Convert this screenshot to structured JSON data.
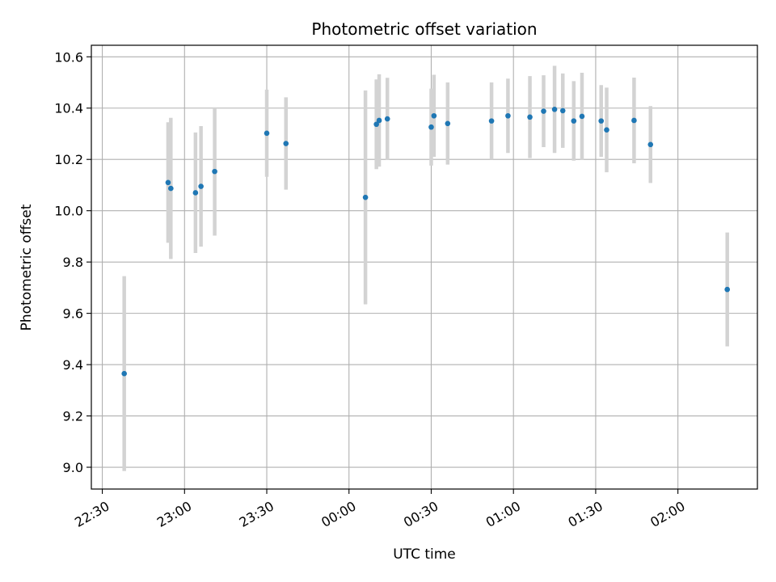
{
  "chart_data": {
    "type": "scatter",
    "title": "Photometric offset variation",
    "xlabel": "UTC time",
    "ylabel": "Photometric offset",
    "x_ticks": [
      "22:30",
      "23:00",
      "23:30",
      "00:00",
      "00:30",
      "01:00",
      "01:30",
      "02:00"
    ],
    "y_ticks": [
      "9.0",
      "9.2",
      "9.4",
      "9.6",
      "9.8",
      "10.0",
      "10.2",
      "10.4",
      "10.6"
    ],
    "xlim": [
      "22:26",
      "02:29"
    ],
    "ylim": [
      8.915,
      10.645
    ],
    "grid": true,
    "colors": {
      "point": "#1f77b4",
      "errorbar": "#d3d3d3",
      "grid": "#b0b0b0"
    },
    "points": [
      {
        "x": "22:38",
        "y": 9.365,
        "yerr": 0.38
      },
      {
        "x": "22:54",
        "y": 10.11,
        "yerr": 0.235
      },
      {
        "x": "22:55",
        "y": 10.087,
        "yerr": 0.275
      },
      {
        "x": "23:04",
        "y": 10.07,
        "yerr": 0.235
      },
      {
        "x": "23:06",
        "y": 10.095,
        "yerr": 0.235
      },
      {
        "x": "23:11",
        "y": 10.153,
        "yerr": 0.25
      },
      {
        "x": "23:30",
        "y": 10.302,
        "yerr": 0.17
      },
      {
        "x": "23:37",
        "y": 10.262,
        "yerr": 0.18
      },
      {
        "x": "00:06",
        "y": 10.052,
        "yerr": 0.417
      },
      {
        "x": "00:10",
        "y": 10.337,
        "yerr": 0.175
      },
      {
        "x": "00:11",
        "y": 10.352,
        "yerr": 0.18
      },
      {
        "x": "00:14",
        "y": 10.358,
        "yerr": 0.16
      },
      {
        "x": "00:30",
        "y": 10.326,
        "yerr": 0.15
      },
      {
        "x": "00:31",
        "y": 10.37,
        "yerr": 0.16
      },
      {
        "x": "00:36",
        "y": 10.34,
        "yerr": 0.16
      },
      {
        "x": "00:52",
        "y": 10.35,
        "yerr": 0.15
      },
      {
        "x": "00:58",
        "y": 10.37,
        "yerr": 0.145
      },
      {
        "x": "01:06",
        "y": 10.365,
        "yerr": 0.16
      },
      {
        "x": "01:11",
        "y": 10.388,
        "yerr": 0.14
      },
      {
        "x": "01:15",
        "y": 10.395,
        "yerr": 0.17
      },
      {
        "x": "01:18",
        "y": 10.39,
        "yerr": 0.145
      },
      {
        "x": "01:22",
        "y": 10.35,
        "yerr": 0.155
      },
      {
        "x": "01:25",
        "y": 10.368,
        "yerr": 0.17
      },
      {
        "x": "01:32",
        "y": 10.35,
        "yerr": 0.14
      },
      {
        "x": "01:34",
        "y": 10.315,
        "yerr": 0.165
      },
      {
        "x": "01:44",
        "y": 10.352,
        "yerr": 0.167
      },
      {
        "x": "01:50",
        "y": 10.258,
        "yerr": 0.15
      },
      {
        "x": "02:18",
        "y": 9.693,
        "yerr": 0.222
      }
    ]
  }
}
